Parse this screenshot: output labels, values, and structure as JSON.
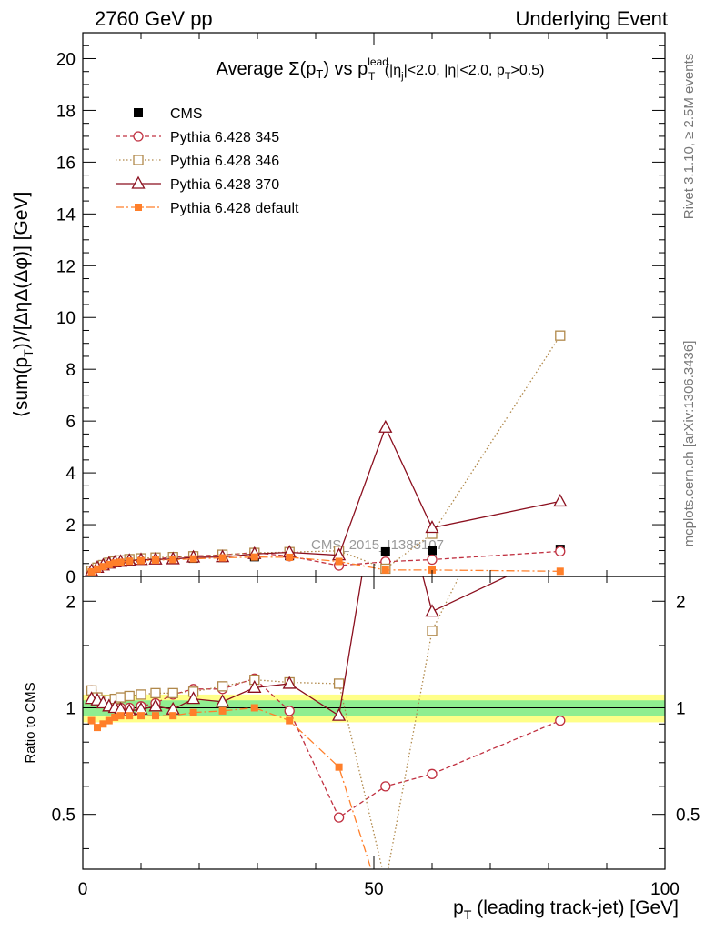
{
  "header": {
    "left": "2760 GeV pp",
    "right": "Underlying Event"
  },
  "side_labels": {
    "rivet": "Rivet 3.1.10, ≥ 2.5M events",
    "mcplots": "mcplots.cern.ch [arXiv:1306.3436]"
  },
  "watermark": "CMS_2015_I1385107",
  "title": {
    "prefix": "Average Σ(p",
    "sub_T": "T",
    "mid": ") vs p",
    "sup_lead": "lead",
    "suffix1": " (|η",
    "sub_j": "j",
    "suffix2": "|<2.0, |η|<2.0, p",
    "suffix3": ">0.5)"
  },
  "axes": {
    "ylabel": "⟨sum(p_T)⟩/[ΔηΔ(Δφ)] [GeV]",
    "ylabel_parts": {
      "a": "⟨sum(p",
      "sub": "T",
      "b": ")⟩/[ΔηΔ(Δφ)] [GeV]"
    },
    "ratio_ylabel": "Ratio to CMS",
    "xlabel_parts": {
      "a": "p",
      "sub": "T",
      "b": " (leading track-jet) [GeV]"
    }
  },
  "chart_data": {
    "type": "line",
    "xlim": [
      0,
      100
    ],
    "ylim": [
      0,
      21
    ],
    "ratio_ylim": [
      0.35,
      2.35
    ],
    "x_ticks": [
      0,
      50,
      100
    ],
    "x_tick_labels": [
      "0",
      "50",
      "100"
    ],
    "y_ticks": [
      0,
      2,
      4,
      6,
      8,
      10,
      12,
      14,
      16,
      18,
      20
    ],
    "y_tick_labels": [
      "0",
      "2",
      "4",
      "6",
      "8",
      "10",
      "12",
      "14",
      "16",
      "18",
      "20"
    ],
    "ratio_ticks": [
      0.5,
      1,
      2
    ],
    "ratio_tick_labels": [
      "0.5",
      "1",
      "2"
    ],
    "legend": {
      "placement": "top-left"
    },
    "bands": {
      "inner": 0.05,
      "outer": 0.09,
      "inner_color": "#90ee90",
      "outer_color": "#ffff88"
    },
    "series": [
      {
        "name": "CMS",
        "style": "data",
        "color": "#000000",
        "x": [
          1.5,
          2.5,
          3.5,
          4.5,
          5.5,
          6.5,
          8,
          10,
          12.5,
          15.5,
          19,
          24,
          29.5,
          35.5,
          44,
          52,
          60,
          82
        ],
        "y": [
          0.2,
          0.32,
          0.42,
          0.5,
          0.55,
          0.58,
          0.62,
          0.64,
          0.66,
          0.68,
          0.7,
          0.73,
          0.76,
          0.8,
          0.85,
          0.95,
          1.0,
          1.05
        ]
      },
      {
        "name": "Pythia 6.428 345",
        "style": "circle-open-dashed",
        "color": "#c03040",
        "x": [
          1.5,
          2.5,
          3.5,
          4.5,
          5.5,
          6.5,
          8,
          10,
          12.5,
          15.5,
          19,
          24,
          29.5,
          35.5,
          44,
          52,
          60,
          82
        ],
        "y": [
          0.22,
          0.34,
          0.44,
          0.51,
          0.56,
          0.59,
          0.62,
          0.65,
          0.68,
          0.74,
          0.79,
          0.83,
          0.92,
          0.78,
          0.42,
          0.57,
          0.65,
          0.97
        ],
        "ratio": [
          1.12,
          1.07,
          1.04,
          1.03,
          1.01,
          1.0,
          1.0,
          1.01,
          1.03,
          1.09,
          1.13,
          1.13,
          1.21,
          0.98,
          0.49,
          0.6,
          0.65,
          0.92
        ]
      },
      {
        "name": "Pythia 6.428 346",
        "style": "square-open-dotted",
        "color": "#b0884a",
        "x": [
          1.5,
          2.5,
          3.5,
          4.5,
          5.5,
          6.5,
          8,
          10,
          12.5,
          15.5,
          19,
          24,
          29.5,
          35.5,
          44,
          52,
          60,
          82
        ],
        "y": [
          0.22,
          0.34,
          0.44,
          0.53,
          0.58,
          0.62,
          0.67,
          0.7,
          0.73,
          0.75,
          0.78,
          0.84,
          0.91,
          0.94,
          0.99,
          0.3,
          1.65,
          9.3
        ],
        "ratio": [
          1.12,
          1.07,
          1.05,
          1.05,
          1.06,
          1.07,
          1.08,
          1.09,
          1.1,
          1.1,
          1.11,
          1.15,
          1.2,
          1.18,
          1.17,
          0.32,
          1.65,
          8.8
        ]
      },
      {
        "name": "Pythia 6.428 370",
        "style": "triangle-open-solid",
        "color": "#8b0f1e",
        "x": [
          1.5,
          2.5,
          3.5,
          4.5,
          5.5,
          6.5,
          8,
          10,
          12.5,
          15.5,
          19,
          24,
          29.5,
          35.5,
          44,
          52,
          60,
          82
        ],
        "y": [
          0.21,
          0.34,
          0.43,
          0.5,
          0.55,
          0.57,
          0.61,
          0.64,
          0.66,
          0.67,
          0.74,
          0.75,
          0.87,
          0.93,
          0.82,
          5.75,
          1.88,
          2.9
        ],
        "ratio": [
          1.06,
          1.05,
          1.03,
          1.01,
          1.0,
          0.99,
          0.98,
          0.99,
          1.01,
          0.99,
          1.06,
          1.04,
          1.14,
          1.17,
          0.95,
          6.0,
          1.87,
          2.77
        ]
      },
      {
        "name": "Pythia 6.428 default",
        "style": "square-filled-dashdot",
        "color": "#ff7f2a",
        "x": [
          1.5,
          2.5,
          3.5,
          4.5,
          5.5,
          6.5,
          8,
          10,
          12.5,
          15.5,
          19,
          24,
          29.5,
          35.5,
          44,
          52,
          60,
          82
        ],
        "y": [
          0.18,
          0.29,
          0.38,
          0.46,
          0.52,
          0.55,
          0.59,
          0.61,
          0.63,
          0.65,
          0.68,
          0.72,
          0.75,
          0.74,
          0.58,
          0.25,
          0.25,
          0.2
        ],
        "ratio": [
          0.92,
          0.88,
          0.9,
          0.92,
          0.94,
          0.95,
          0.95,
          0.95,
          0.95,
          0.95,
          0.97,
          0.98,
          1.0,
          0.92,
          0.68,
          0.26,
          0.25,
          0.19
        ]
      }
    ]
  }
}
